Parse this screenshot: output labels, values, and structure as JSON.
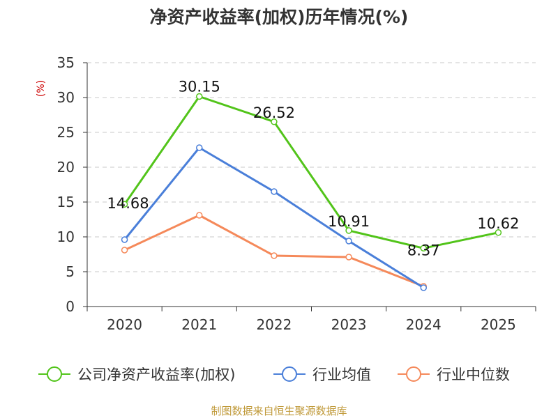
{
  "chart_data": {
    "type": "line",
    "title": "净资产收益率(加权)历年情况(%)",
    "unit": "(%)",
    "categories": [
      "2020",
      "2021",
      "2022",
      "2023",
      "2024",
      "2025"
    ],
    "ylim": [
      0,
      35
    ],
    "yticks": [
      "0",
      "5",
      "10",
      "15",
      "20",
      "25",
      "30",
      "35"
    ],
    "grid": true,
    "legend_position": "bottom",
    "series": [
      {
        "name": "公司净资产收益率(加权)",
        "color": "#52c41a",
        "values": [
          14.68,
          30.15,
          26.52,
          10.91,
          8.37,
          10.62
        ],
        "labels": [
          "14.68",
          "30.15",
          "26.52",
          "10.91",
          "8.37",
          "10.62"
        ]
      },
      {
        "name": "行业均值",
        "color": "#4a7fd9",
        "values": [
          9.6,
          22.8,
          16.5,
          9.4,
          2.7,
          null
        ]
      },
      {
        "name": "行业中位数",
        "color": "#f5895a",
        "values": [
          8.1,
          13.1,
          7.3,
          7.1,
          2.9,
          null
        ]
      }
    ]
  },
  "footer": "制图数据来自恒生聚源数据库"
}
